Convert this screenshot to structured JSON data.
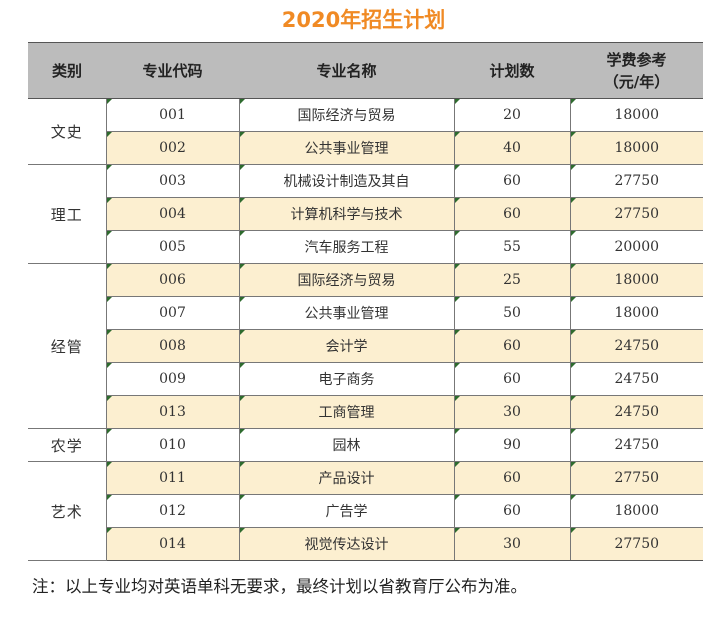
{
  "title": "2020年招生计划",
  "table": {
    "headers": [
      "类别",
      "专业代码",
      "专业名称",
      "计划数",
      "学费参考",
      "（元/年）"
    ],
    "groups": [
      {
        "category": "文史",
        "rows": [
          {
            "code": "001",
            "name": "国际经济与贸易",
            "plan": "20",
            "fee": "18000"
          },
          {
            "code": "002",
            "name": "公共事业管理",
            "plan": "40",
            "fee": "18000"
          }
        ]
      },
      {
        "category": "理工",
        "rows": [
          {
            "code": "003",
            "name": "机械设计制造及其自",
            "plan": "60",
            "fee": "27750"
          },
          {
            "code": "004",
            "name": "计算机科学与技术",
            "plan": "60",
            "fee": "27750"
          },
          {
            "code": "005",
            "name": "汽车服务工程",
            "plan": "55",
            "fee": "20000"
          }
        ]
      },
      {
        "category": "经管",
        "rows": [
          {
            "code": "006",
            "name": "国际经济与贸易",
            "plan": "25",
            "fee": "18000"
          },
          {
            "code": "007",
            "name": "公共事业管理",
            "plan": "50",
            "fee": "18000"
          },
          {
            "code": "008",
            "name": "会计学",
            "plan": "60",
            "fee": "24750"
          },
          {
            "code": "009",
            "name": "电子商务",
            "plan": "60",
            "fee": "24750"
          },
          {
            "code": "013",
            "name": "工商管理",
            "plan": "30",
            "fee": "24750"
          }
        ]
      },
      {
        "category": "农学",
        "rows": [
          {
            "code": "010",
            "name": "园林",
            "plan": "90",
            "fee": "24750"
          }
        ]
      },
      {
        "category": "艺术",
        "rows": [
          {
            "code": "011",
            "name": "产品设计",
            "plan": "60",
            "fee": "27750"
          },
          {
            "code": "012",
            "name": "广告学",
            "plan": "60",
            "fee": "18000"
          },
          {
            "code": "014",
            "name": "视觉传达设计",
            "plan": "30",
            "fee": "27750"
          }
        ]
      }
    ]
  },
  "note": "注：以上专业均对英语单科无要求，最终计划以省教育厅公布为准。"
}
